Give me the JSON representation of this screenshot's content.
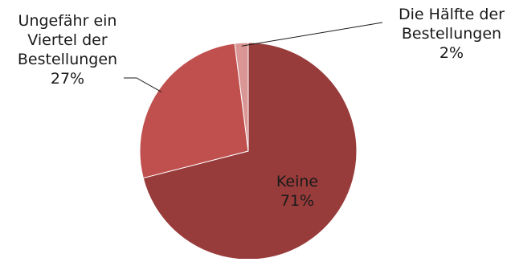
{
  "chart_data": {
    "type": "pie",
    "slices": [
      {
        "label_lines": [
          "Keine"
        ],
        "value_label": "71%",
        "value": 71,
        "color": "#983b3b"
      },
      {
        "label_lines": [
          "Ungefähr ein",
          "Viertel der",
          "Bestellungen"
        ],
        "value_label": "27%",
        "value": 27,
        "color": "#c0504d"
      },
      {
        "label_lines": [
          "Die Hälfte der",
          "Bestellungen"
        ],
        "value_label": "2%",
        "value": 2,
        "color": "#d99694"
      }
    ]
  }
}
